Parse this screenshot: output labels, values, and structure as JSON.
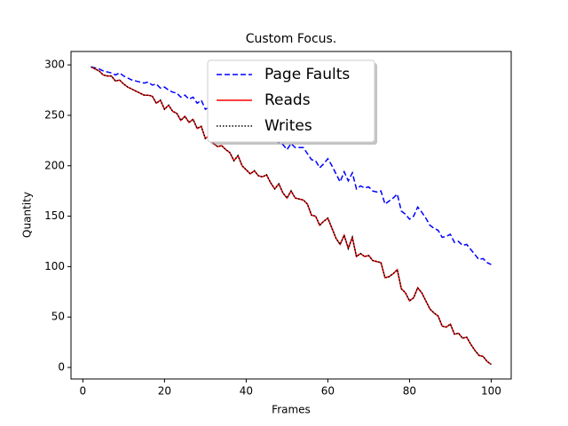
{
  "chart_data": {
    "type": "line",
    "title": "Custom Focus.",
    "x_label": "Frames",
    "y_label": "Quantity",
    "x": [
      2,
      3,
      4,
      5,
      6,
      7,
      8,
      9,
      10,
      11,
      12,
      13,
      14,
      15,
      16,
      17,
      18,
      19,
      20,
      21,
      22,
      23,
      24,
      25,
      26,
      27,
      28,
      29,
      30,
      31,
      32,
      33,
      34,
      35,
      36,
      37,
      38,
      39,
      40,
      41,
      42,
      43,
      44,
      45,
      46,
      47,
      48,
      49,
      50,
      51,
      52,
      53,
      54,
      55,
      56,
      57,
      58,
      59,
      60,
      61,
      62,
      63,
      64,
      65,
      66,
      67,
      68,
      69,
      70,
      71,
      72,
      73,
      74,
      75,
      76,
      77,
      78,
      79,
      80,
      81,
      82,
      83,
      84,
      85,
      86,
      87,
      88,
      89,
      90,
      91,
      92,
      93,
      94,
      95,
      96,
      97,
      98,
      99,
      100
    ],
    "series": [
      {
        "name": "Page Faults",
        "color": "#0000ff",
        "linestyle": "dashed",
        "values": [
          298,
          297,
          296,
          294,
          293,
          292,
          290,
          292,
          289,
          287,
          285,
          284,
          283,
          282,
          283,
          280,
          281,
          277,
          278,
          275,
          273,
          272,
          268,
          270,
          266,
          268,
          262,
          265,
          256,
          258,
          255,
          253,
          250,
          248,
          246,
          244,
          242,
          240,
          238,
          236,
          234,
          232,
          230,
          229,
          227,
          225,
          223,
          221,
          216,
          222,
          218,
          218,
          218,
          212,
          206,
          205,
          198,
          202,
          207,
          200,
          192,
          184,
          194,
          185,
          193,
          177,
          180,
          178,
          179,
          175,
          174,
          175,
          162,
          165,
          168,
          172,
          155,
          152,
          147,
          150,
          159,
          154,
          148,
          141,
          138,
          136,
          129,
          130,
          132,
          124,
          125,
          121,
          122,
          117,
          112,
          107,
          108,
          104,
          102
        ]
      },
      {
        "name": "Reads",
        "color": "#ff0000",
        "linestyle": "solid",
        "values": [
          298,
          296,
          294,
          290,
          289,
          289,
          284,
          285,
          281,
          278,
          276,
          274,
          272,
          270,
          270,
          269,
          262,
          265,
          256,
          260,
          254,
          252,
          245,
          249,
          243,
          246,
          237,
          239,
          227,
          230,
          222,
          219,
          220,
          216,
          213,
          205,
          210,
          200,
          196,
          192,
          195,
          190,
          189,
          191,
          183,
          177,
          182,
          173,
          168,
          175,
          168,
          167,
          166,
          162,
          151,
          150,
          141,
          145,
          148,
          138,
          128,
          122,
          131,
          118,
          129,
          110,
          113,
          110,
          111,
          106,
          105,
          104,
          89,
          90,
          93,
          97,
          78,
          74,
          66,
          69,
          79,
          74,
          66,
          58,
          54,
          51,
          41,
          40,
          43,
          33,
          34,
          29,
          30,
          23,
          17,
          12,
          11,
          6,
          3
        ]
      },
      {
        "name": "Writes",
        "color": "#000000",
        "linestyle": "dotted",
        "values": [
          298,
          296,
          294,
          290,
          289,
          289,
          284,
          285,
          281,
          278,
          276,
          274,
          272,
          270,
          270,
          269,
          262,
          265,
          256,
          260,
          254,
          252,
          245,
          249,
          243,
          246,
          237,
          239,
          227,
          230,
          222,
          219,
          220,
          216,
          213,
          205,
          210,
          200,
          196,
          192,
          195,
          190,
          189,
          191,
          183,
          177,
          182,
          173,
          168,
          175,
          168,
          167,
          166,
          162,
          151,
          150,
          141,
          145,
          148,
          138,
          128,
          122,
          131,
          118,
          129,
          110,
          113,
          110,
          111,
          106,
          105,
          104,
          89,
          90,
          93,
          97,
          78,
          74,
          66,
          69,
          79,
          74,
          66,
          58,
          54,
          51,
          41,
          40,
          43,
          33,
          34,
          29,
          30,
          23,
          17,
          12,
          11,
          6,
          3
        ]
      }
    ],
    "xlim": [
      -2.9,
      104.9
    ],
    "ylim": [
      -11.4,
      313.3
    ],
    "xticks": [
      0,
      20,
      40,
      60,
      80,
      100
    ],
    "yticks": [
      0,
      50,
      100,
      150,
      200,
      250,
      300
    ],
    "legend": "upper center"
  }
}
